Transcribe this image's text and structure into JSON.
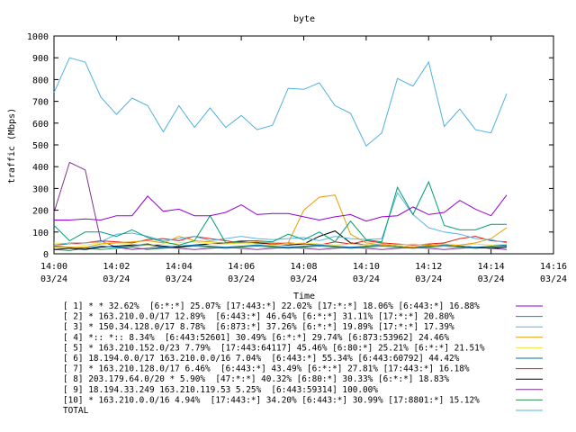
{
  "chart_data": {
    "type": "line",
    "title": "byte",
    "xlabel": "Time",
    "ylabel": "traffic (Mbps)",
    "ylim": [
      0,
      1000
    ],
    "yticks": [
      0,
      100,
      200,
      300,
      400,
      500,
      600,
      700,
      800,
      900,
      1000
    ],
    "xlim": [
      0,
      16
    ],
    "xticks": [
      {
        "value": 0,
        "time": "14:00",
        "date": "03/24"
      },
      {
        "value": 2,
        "time": "14:02",
        "date": "03/24"
      },
      {
        "value": 4,
        "time": "14:04",
        "date": "03/24"
      },
      {
        "value": 6,
        "time": "14:06",
        "date": "03/24"
      },
      {
        "value": 8,
        "time": "14:08",
        "date": "03/24"
      },
      {
        "value": 10,
        "time": "14:10",
        "date": "03/24"
      },
      {
        "value": 12,
        "time": "14:12",
        "date": "03/24"
      },
      {
        "value": 14,
        "time": "14:14",
        "date": "03/24"
      },
      {
        "value": 16,
        "time": "14:16",
        "date": "03/24"
      }
    ],
    "x": [
      0,
      0.5,
      1,
      1.5,
      2,
      2.5,
      3,
      3.5,
      4,
      4.5,
      5,
      5.5,
      6,
      6.5,
      7,
      7.5,
      8,
      8.5,
      9,
      9.5,
      10,
      10.5,
      11,
      11.5,
      12,
      12.5,
      13,
      13.5,
      14,
      14.5
    ],
    "legend_placement": "bottom",
    "series": [
      {
        "label": "[ 1] * * 32.62%  [6:*:*] 25.07% [17:443:*] 22.02% [17:*:*] 18.06% [6:443:*] 16.88%",
        "color": "#9400d3",
        "values": [
          155,
          155,
          160,
          155,
          175,
          175,
          265,
          195,
          205,
          175,
          175,
          190,
          225,
          180,
          185,
          185,
          170,
          155,
          170,
          180,
          150,
          170,
          175,
          215,
          180,
          190,
          245,
          205,
          175,
          270
        ]
      },
      {
        "label": "[ 2] * 163.210.0.0/17 12.89%  [6:443:*] 46.64% [6:*:*] 31.11% [17:*:*] 20.80%",
        "color": "#009e73",
        "values": [
          130,
          60,
          100,
          100,
          80,
          110,
          75,
          55,
          40,
          60,
          175,
          50,
          60,
          60,
          55,
          90,
          65,
          100,
          55,
          150,
          65,
          55,
          305,
          180,
          330,
          130,
          110,
          110,
          135,
          135
        ]
      },
      {
        "label": "[ 3] * 150.34.128.0/17 8.78%  [6:873:*] 37.26% [6:*:*] 19.89% [17:*:*] 17.39%",
        "color": "#56b4e9",
        "values": [
          40,
          50,
          50,
          55,
          90,
          95,
          80,
          60,
          70,
          80,
          60,
          70,
          80,
          70,
          65,
          70,
          75,
          60,
          80,
          70,
          65,
          70,
          280,
          180,
          120,
          100,
          90,
          70,
          65,
          50
        ]
      },
      {
        "label": "[ 4] *:: *:: 8.34%  [6:443:52601] 30.49% [6:*:*] 29.74% [6:873:53962] 24.46%",
        "color": "#e69f00",
        "values": [
          30,
          30,
          30,
          45,
          50,
          55,
          60,
          50,
          80,
          60,
          55,
          50,
          50,
          55,
          50,
          50,
          200,
          260,
          270,
          90,
          50,
          40,
          35,
          30,
          40,
          35,
          40,
          50,
          70,
          120
        ]
      },
      {
        "label": "[ 5] * 163.210.152.0/23 7.79%  [17:443:64117] 45.46% [6:80:*] 25.21% [6:*:*] 21.51%",
        "color": "#f0e442",
        "values": [
          50,
          45,
          40,
          50,
          50,
          45,
          40,
          45,
          50,
          55,
          45,
          45,
          50,
          45,
          40,
          45,
          50,
          45,
          40,
          45,
          40,
          45,
          40,
          45,
          40,
          45,
          40,
          45,
          40,
          45
        ]
      },
      {
        "label": "[ 6] 18.194.0.0/17 163.210.0.0/16 7.04%  [6:443:*] 55.34% [6:443:60792] 44.42%",
        "color": "#0072b2",
        "values": [
          35,
          30,
          25,
          35,
          30,
          35,
          40,
          30,
          35,
          40,
          35,
          30,
          35,
          40,
          35,
          30,
          35,
          40,
          35,
          30,
          35,
          40,
          35,
          30,
          35,
          40,
          35,
          30,
          35,
          40
        ]
      },
      {
        "label": "[ 7] * 163.210.128.0/17 6.46%  [6:443:*] 43.49% [6:*:*] 27.81% [17:443:*] 16.18%",
        "color": "#e51e10",
        "values": [
          40,
          45,
          50,
          60,
          55,
          50,
          65,
          70,
          60,
          80,
          70,
          60,
          50,
          55,
          45,
          50,
          45,
          40,
          55,
          45,
          60,
          50,
          45,
          40,
          45,
          50,
          70,
          80,
          60,
          55
        ]
      },
      {
        "label": "[ 8] 203.179.64.0/20 * 5.90%  [47:*:*] 40.32% [6:80:*] 30.33% [6:*:*] 18.83%",
        "color": "#000000",
        "values": [
          20,
          25,
          20,
          30,
          35,
          40,
          45,
          35,
          30,
          40,
          45,
          50,
          55,
          50,
          45,
          40,
          45,
          80,
          105,
          50,
          40,
          45,
          35,
          30,
          40,
          45,
          35,
          30,
          25,
          30
        ]
      },
      {
        "label": "[ 9] 18.194.33.249 163.210.119.53 5.25%  [6:443:59314] 100.00%",
        "color": "#7e2f8e",
        "values": [
          190,
          420,
          385,
          60,
          30,
          20,
          25,
          30,
          25,
          20,
          25,
          30,
          25,
          20,
          25,
          30,
          25,
          20,
          25,
          30,
          25,
          20,
          25,
          30,
          25,
          20,
          25,
          30,
          25,
          20
        ]
      },
      {
        "label": "[10] * 163.210.0.0/16 4.94%  [17:443:*] 34.20% [6:443:*] 30.99% [17:8801:*] 15.12%",
        "color": "#2e8b57",
        "values": [
          20,
          15,
          25,
          20,
          25,
          30,
          20,
          25,
          30,
          35,
          30,
          25,
          30,
          35,
          30,
          25,
          30,
          35,
          30,
          25,
          30,
          35,
          30,
          25,
          30,
          35,
          30,
          25,
          30,
          35
        ]
      },
      {
        "label": "TOTAL",
        "color": "#4fb0e0",
        "values": [
          740,
          900,
          880,
          720,
          640,
          715,
          680,
          560,
          680,
          580,
          670,
          580,
          635,
          570,
          590,
          760,
          755,
          785,
          680,
          645,
          495,
          555,
          805,
          770,
          880,
          585,
          665,
          570,
          555,
          735
        ]
      }
    ]
  }
}
